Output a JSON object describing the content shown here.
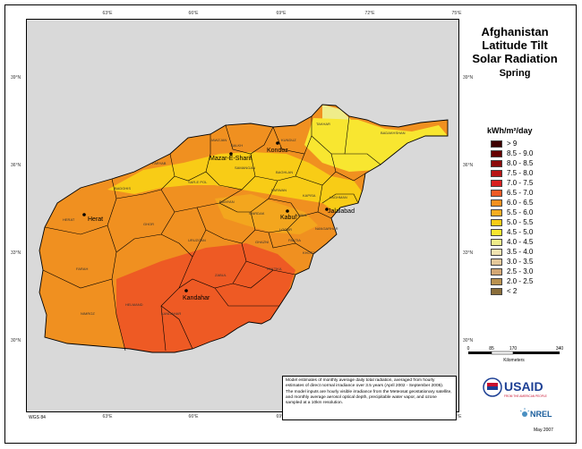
{
  "title": {
    "line1": "Afghanistan",
    "line2": "Latitude Tilt",
    "line3": "Solar Radiation",
    "line4": "Spring"
  },
  "ticks": {
    "lon": [
      "63°E",
      "66°E",
      "69°E",
      "72°E",
      "75°E"
    ],
    "lat": [
      "39°N",
      "36°N",
      "33°N",
      "30°N"
    ]
  },
  "legend": {
    "title": "kWh/m²/day",
    "items": [
      {
        "label": "> 9",
        "color": "#3d0000"
      },
      {
        "label": "8.5 - 9.0",
        "color": "#660000"
      },
      {
        "label": "8.0 - 8.5",
        "color": "#8c0a0a"
      },
      {
        "label": "7.5 - 8.0",
        "color": "#b81414"
      },
      {
        "label": "7.0 - 7.5",
        "color": "#d92020"
      },
      {
        "label": "6.5 - 7.0",
        "color": "#ee5a24"
      },
      {
        "label": "6.0 - 6.5",
        "color": "#f3901e"
      },
      {
        "label": "5.5 - 6.0",
        "color": "#f6ad22"
      },
      {
        "label": "5.0 - 5.5",
        "color": "#f8cc16"
      },
      {
        "label": "4.5 - 5.0",
        "color": "#f8e630"
      },
      {
        "label": "4.0 - 4.5",
        "color": "#efec8a"
      },
      {
        "label": "3.5 - 4.0",
        "color": "#f1e3b0"
      },
      {
        "label": "3.0 - 3.5",
        "color": "#e5c89a"
      },
      {
        "label": "2.5 - 3.0",
        "color": "#d3a774"
      },
      {
        "label": "2.0 - 2.5",
        "color": "#b9914e"
      },
      {
        "label": "< 2",
        "color": "#8a6d3a"
      }
    ]
  },
  "scale": {
    "labels": [
      "0",
      "85",
      "170",
      "340"
    ],
    "unit": "Kilometers"
  },
  "cities": [
    {
      "name": "Herat"
    },
    {
      "name": "Mazar-E-Sharif"
    },
    {
      "name": "Kondoz"
    },
    {
      "name": "Kabul"
    },
    {
      "name": "Jalalabad"
    },
    {
      "name": "Kandahar"
    }
  ],
  "provinces": [
    "JAWZJAN",
    "BALKH",
    "KUNDUZ",
    "TAKHAR",
    "BADAKHSHAN",
    "FARYAB",
    "SAMANGAN",
    "BAGHLAN",
    "BADGHIS",
    "SAR-E POL",
    "PARWAN",
    "KAPISA",
    "BAMYAN",
    "KABUL",
    "LAGHMAN",
    "HERAT",
    "GHOR",
    "WARDAK",
    "LOGAR",
    "NANGARHAR",
    "URUZGAN",
    "GHAZNI",
    "PAKTIA",
    "KHOST",
    "FARAH",
    "HELMAND",
    "ZABUL",
    "PAKTIKA",
    "NIMROZ",
    "KANDAHAR"
  ],
  "notes": {
    "p1": "Model estimates of monthly average daily total radiation, averaged from hourly estimates of direct normal irradiance over 3.5 years (April 2002 - September 2005).",
    "p2": "The model inputs are hourly visible irradiance from the Meteosat geostationary satellite, and monthly average aerosol optical depth, precipitable water vapor, and ozone sampled at a 10km resolution."
  },
  "datum": "WGS 84",
  "date": "May 2007",
  "logos": {
    "usaid": "USAID",
    "usaid_tagline": "FROM THE AMERICAN PEOPLE",
    "nrel": "NREL"
  },
  "colors": {
    "orange_dark": "#f09020",
    "orange": "#f3a61e",
    "red_orange": "#ee5a24",
    "yellow": "#f8cc16",
    "yellow_light": "#f8e630",
    "pale": "#efec8a",
    "map_background": "#d9d9d9"
  }
}
